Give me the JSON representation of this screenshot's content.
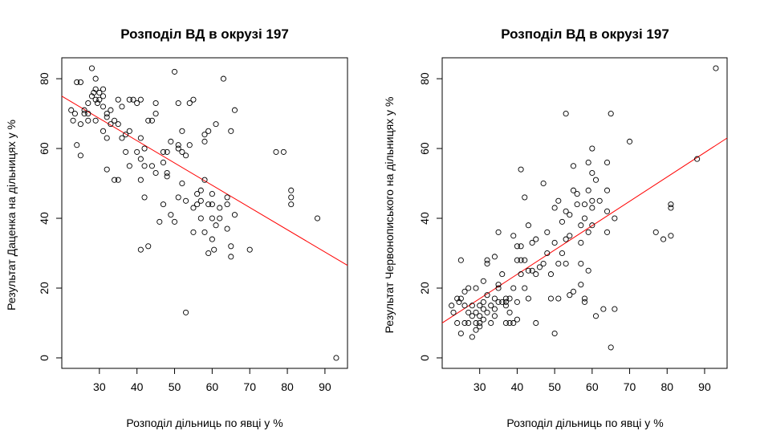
{
  "chart_data": [
    {
      "type": "scatter",
      "title": "Розподіл ВД в окрузі 197",
      "xlabel": "Розподіл дільниць по явці у %",
      "ylabel": "Результат Даценка на дільницях у %",
      "xlim": [
        20,
        96
      ],
      "ylim": [
        -3,
        86
      ],
      "xticks": [
        "30",
        "40",
        "50",
        "60",
        "70",
        "80",
        "90"
      ],
      "yticks": [
        "0",
        "20",
        "40",
        "60",
        "80"
      ],
      "trend_line": {
        "x": [
          20,
          96
        ],
        "y": [
          75,
          26.5
        ],
        "color": "#ff0000"
      },
      "points": [
        [
          22.5,
          71
        ],
        [
          23,
          68
        ],
        [
          23.5,
          70
        ],
        [
          24,
          79
        ],
        [
          24,
          61
        ],
        [
          25,
          79
        ],
        [
          25,
          67
        ],
        [
          25,
          58
        ],
        [
          26,
          71
        ],
        [
          26,
          70
        ],
        [
          27,
          73
        ],
        [
          27,
          70
        ],
        [
          27,
          68
        ],
        [
          28,
          83
        ],
        [
          28,
          75
        ],
        [
          28.5,
          76
        ],
        [
          29,
          80
        ],
        [
          29,
          77
        ],
        [
          29,
          74
        ],
        [
          29,
          68
        ],
        [
          29.5,
          73
        ],
        [
          30,
          76
        ],
        [
          30,
          74
        ],
        [
          31,
          77
        ],
        [
          31,
          75
        ],
        [
          31,
          72
        ],
        [
          31,
          65
        ],
        [
          32,
          70
        ],
        [
          32,
          69
        ],
        [
          32,
          63
        ],
        [
          32,
          54
        ],
        [
          33,
          71
        ],
        [
          33,
          67
        ],
        [
          34,
          68
        ],
        [
          34,
          51
        ],
        [
          35,
          74
        ],
        [
          35,
          67
        ],
        [
          35,
          51
        ],
        [
          36,
          63
        ],
        [
          36,
          72
        ],
        [
          37,
          64
        ],
        [
          37,
          59
        ],
        [
          38,
          74
        ],
        [
          38,
          65
        ],
        [
          38,
          55
        ],
        [
          39,
          74
        ],
        [
          40,
          73
        ],
        [
          40,
          59
        ],
        [
          41,
          74
        ],
        [
          41,
          63
        ],
        [
          41,
          57
        ],
        [
          41,
          51
        ],
        [
          41,
          31
        ],
        [
          42,
          60
        ],
        [
          42,
          55
        ],
        [
          42,
          46
        ],
        [
          43,
          68
        ],
        [
          43,
          32
        ],
        [
          44,
          68
        ],
        [
          44,
          55
        ],
        [
          45,
          73
        ],
        [
          45,
          70
        ],
        [
          45,
          53
        ],
        [
          46,
          39
        ],
        [
          47,
          59
        ],
        [
          47,
          56
        ],
        [
          47,
          44
        ],
        [
          48,
          59
        ],
        [
          48,
          53
        ],
        [
          48,
          52
        ],
        [
          49,
          62
        ],
        [
          49,
          41
        ],
        [
          50,
          82
        ],
        [
          50,
          39
        ],
        [
          51,
          73
        ],
        [
          51,
          61
        ],
        [
          51,
          60
        ],
        [
          51,
          46
        ],
        [
          52,
          65
        ],
        [
          52,
          59
        ],
        [
          52,
          50
        ],
        [
          53,
          58
        ],
        [
          53,
          13
        ],
        [
          53,
          45
        ],
        [
          54,
          73
        ],
        [
          54,
          61
        ],
        [
          55,
          74
        ],
        [
          55,
          36
        ],
        [
          55,
          43
        ],
        [
          56,
          44
        ],
        [
          56,
          47
        ],
        [
          57,
          40
        ],
        [
          57,
          45
        ],
        [
          57,
          48
        ],
        [
          58,
          62
        ],
        [
          58,
          64
        ],
        [
          58,
          51
        ],
        [
          58,
          36
        ],
        [
          59,
          65
        ],
        [
          59,
          44
        ],
        [
          59,
          30
        ],
        [
          60,
          47
        ],
        [
          60,
          44
        ],
        [
          60,
          40
        ],
        [
          60,
          34
        ],
        [
          60.5,
          31
        ],
        [
          61,
          38
        ],
        [
          61,
          67
        ],
        [
          62,
          43
        ],
        [
          62,
          40
        ],
        [
          63,
          80
        ],
        [
          64,
          46
        ],
        [
          64,
          37
        ],
        [
          64,
          44
        ],
        [
          65,
          65
        ],
        [
          65,
          32
        ],
        [
          65,
          29
        ],
        [
          66,
          71
        ],
        [
          66,
          41
        ],
        [
          70,
          31
        ],
        [
          77,
          59
        ],
        [
          79,
          59
        ],
        [
          81,
          48
        ],
        [
          81,
          46
        ],
        [
          81,
          44
        ],
        [
          88,
          40
        ],
        [
          93,
          0
        ]
      ]
    },
    {
      "type": "scatter",
      "title": "Розподіл ВД в окрузі 197",
      "xlabel": "Розподіл дільниць по явці у %",
      "ylabel": "Результат Червонописького на дільницях у %",
      "xlim": [
        20,
        96
      ],
      "ylim": [
        -3,
        86
      ],
      "xticks": [
        "30",
        "40",
        "50",
        "60",
        "70",
        "80",
        "90"
      ],
      "yticks": [
        "0",
        "20",
        "40",
        "60",
        "80"
      ],
      "trend_line": {
        "x": [
          20,
          96
        ],
        "y": [
          10,
          63
        ],
        "color": "#ff0000"
      },
      "points": [
        [
          22.5,
          15
        ],
        [
          23,
          13
        ],
        [
          24,
          17
        ],
        [
          24,
          10
        ],
        [
          24.5,
          16
        ],
        [
          25,
          28
        ],
        [
          25,
          17
        ],
        [
          25,
          7
        ],
        [
          26,
          19
        ],
        [
          26,
          15
        ],
        [
          26,
          10
        ],
        [
          27,
          20
        ],
        [
          27,
          13
        ],
        [
          27,
          10
        ],
        [
          28,
          6
        ],
        [
          28,
          15
        ],
        [
          28,
          12
        ],
        [
          29,
          13
        ],
        [
          29,
          10
        ],
        [
          29,
          8
        ],
        [
          29,
          20
        ],
        [
          30,
          15
        ],
        [
          30,
          12
        ],
        [
          30,
          10
        ],
        [
          30,
          9
        ],
        [
          31,
          22
        ],
        [
          31,
          16
        ],
        [
          31,
          14
        ],
        [
          31,
          11
        ],
        [
          32,
          28
        ],
        [
          32,
          27
        ],
        [
          32,
          18
        ],
        [
          32,
          13
        ],
        [
          33,
          15
        ],
        [
          33,
          10
        ],
        [
          34,
          29
        ],
        [
          34,
          17
        ],
        [
          34,
          14
        ],
        [
          34,
          12
        ],
        [
          35,
          36
        ],
        [
          35,
          21
        ],
        [
          35,
          20
        ],
        [
          35,
          16
        ],
        [
          36,
          24
        ],
        [
          36,
          16
        ],
        [
          37,
          15
        ],
        [
          37,
          16
        ],
        [
          37,
          17
        ],
        [
          37,
          10
        ],
        [
          38,
          17
        ],
        [
          38,
          13
        ],
        [
          38,
          10
        ],
        [
          39,
          35
        ],
        [
          39,
          20
        ],
        [
          39,
          10
        ],
        [
          40,
          32
        ],
        [
          40,
          28
        ],
        [
          40,
          16
        ],
        [
          40,
          11
        ],
        [
          41,
          54
        ],
        [
          41,
          32
        ],
        [
          41,
          28
        ],
        [
          41,
          24
        ],
        [
          42,
          46
        ],
        [
          42,
          28
        ],
        [
          42,
          20
        ],
        [
          43,
          38
        ],
        [
          43,
          25
        ],
        [
          43,
          17
        ],
        [
          44,
          33
        ],
        [
          44,
          25
        ],
        [
          45,
          34
        ],
        [
          45,
          24
        ],
        [
          45,
          10
        ],
        [
          46,
          26
        ],
        [
          47,
          50
        ],
        [
          47,
          27
        ],
        [
          48,
          36
        ],
        [
          48,
          30
        ],
        [
          49,
          24
        ],
        [
          49,
          17
        ],
        [
          50,
          7
        ],
        [
          50,
          43
        ],
        [
          50,
          33
        ],
        [
          51,
          45
        ],
        [
          51,
          27
        ],
        [
          51,
          17
        ],
        [
          52,
          39
        ],
        [
          52,
          30
        ],
        [
          53,
          70
        ],
        [
          53,
          42
        ],
        [
          53,
          34
        ],
        [
          53,
          27
        ],
        [
          54,
          41
        ],
        [
          54,
          35
        ],
        [
          54,
          18
        ],
        [
          55,
          55
        ],
        [
          55,
          48
        ],
        [
          55,
          19
        ],
        [
          56,
          47
        ],
        [
          56,
          44
        ],
        [
          57,
          38
        ],
        [
          57,
          33
        ],
        [
          57,
          27
        ],
        [
          57,
          21
        ],
        [
          58,
          44
        ],
        [
          58,
          40
        ],
        [
          58,
          17
        ],
        [
          58,
          16
        ],
        [
          59,
          56
        ],
        [
          59,
          48
        ],
        [
          59,
          36
        ],
        [
          59,
          25
        ],
        [
          60,
          60
        ],
        [
          60,
          45
        ],
        [
          60,
          43
        ],
        [
          60,
          38
        ],
        [
          60,
          53
        ],
        [
          61,
          51
        ],
        [
          61,
          12
        ],
        [
          62,
          45
        ],
        [
          63,
          14
        ],
        [
          64,
          56
        ],
        [
          64,
          48
        ],
        [
          64,
          42
        ],
        [
          64,
          36
        ],
        [
          65,
          70
        ],
        [
          65,
          3
        ],
        [
          66,
          40
        ],
        [
          66,
          14
        ],
        [
          70,
          62
        ],
        [
          77,
          36
        ],
        [
          79,
          34
        ],
        [
          81,
          44
        ],
        [
          81,
          43
        ],
        [
          81,
          35
        ],
        [
          88,
          57
        ],
        [
          93,
          83
        ]
      ]
    }
  ]
}
